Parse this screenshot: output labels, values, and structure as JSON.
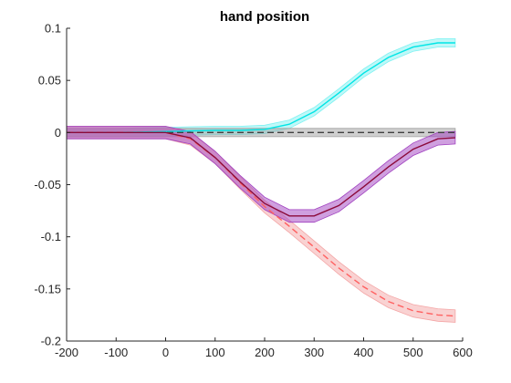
{
  "chart_data": {
    "type": "line",
    "title": "hand position",
    "xlabel": "",
    "ylabel": "",
    "xlim": [
      -200,
      600
    ],
    "ylim": [
      -0.2,
      0.1
    ],
    "xticks": [
      -200,
      -100,
      0,
      100,
      200,
      300,
      400,
      500,
      600
    ],
    "xtick_labels": [
      "-200",
      "-100",
      "0",
      "100",
      "200",
      "300",
      "400",
      "500",
      "600"
    ],
    "yticks": [
      0.1,
      0.05,
      0,
      -0.05,
      -0.1,
      -0.15,
      -0.2
    ],
    "ytick_labels": [
      "0.1",
      "0.05",
      "0",
      "-0.05",
      "-0.1",
      "-0.15",
      "-0.2"
    ],
    "grid": false,
    "legend": "none",
    "x": [
      -200,
      -100,
      -50,
      0,
      50,
      100,
      150,
      200,
      250,
      300,
      350,
      400,
      450,
      500,
      550,
      585
    ],
    "series": [
      {
        "color": "#00e5e5",
        "band_color": "#7ff2f2",
        "dashed": false,
        "values": [
          0,
          0,
          0.0005,
          0.001,
          0.0015,
          0.002,
          0.002,
          0.003,
          0.008,
          0.02,
          0.038,
          0.057,
          0.072,
          0.082,
          0.086,
          0.086
        ],
        "band": 0.004
      },
      {
        "color": "#404040",
        "band_color": "#a0a0a0",
        "dashed": true,
        "values": [
          0,
          0,
          0,
          0,
          0,
          0,
          0,
          0,
          0,
          0,
          0,
          0,
          0,
          0,
          0,
          0
        ],
        "band": 0.004
      },
      {
        "color": "#ff6060",
        "band_color": "#f4a6a6",
        "dashed": true,
        "values": [
          0,
          0,
          0,
          0,
          -0.006,
          -0.024,
          -0.048,
          -0.071,
          -0.09,
          -0.11,
          -0.13,
          -0.148,
          -0.162,
          -0.171,
          -0.175,
          -0.176
        ],
        "band": 0.006
      },
      {
        "color": "#8b0a3a",
        "band_color": "#a040c0",
        "dashed": false,
        "values": [
          0,
          0,
          0,
          0,
          -0.005,
          -0.024,
          -0.047,
          -0.068,
          -0.08,
          -0.08,
          -0.07,
          -0.052,
          -0.033,
          -0.016,
          -0.006,
          -0.005
        ],
        "band": 0.006
      }
    ]
  }
}
